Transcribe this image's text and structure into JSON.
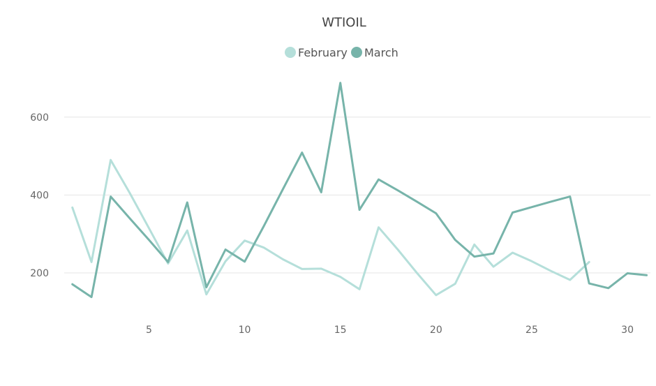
{
  "chart_data": {
    "type": "line",
    "title": "WTIOIL",
    "xlabel": "",
    "ylabel": "",
    "xlim": [
      0.5,
      31.2
    ],
    "ylim": [
      105,
      700
    ],
    "x_ticks": [
      5,
      10,
      15,
      20,
      25,
      30
    ],
    "y_ticks": [
      200,
      400,
      600
    ],
    "grid": true,
    "legend_position": "top-center",
    "series": [
      {
        "name": "February",
        "color": "#b5dfda",
        "x": [
          1,
          2,
          3,
          4,
          5,
          6,
          7,
          8,
          9,
          10,
          11,
          12,
          13,
          14,
          15,
          16,
          17,
          18,
          19,
          20,
          21,
          22,
          23,
          24,
          25,
          26,
          27,
          28
        ],
        "values": [
          368,
          228,
          490,
          405,
          315,
          224,
          309,
          145,
          230,
          283,
          265,
          235,
          210,
          211,
          190,
          158,
          317,
          260,
          200,
          143,
          172,
          273,
          216,
          252,
          230,
          205,
          182,
          228
        ]
      },
      {
        "name": "March",
        "color": "#77b4aa",
        "x": [
          1,
          2,
          3,
          4,
          5,
          6,
          7,
          8,
          9,
          10,
          11,
          12,
          13,
          14,
          15,
          16,
          17,
          18,
          19,
          20,
          21,
          22,
          23,
          24,
          25,
          26,
          27,
          28,
          29,
          30,
          31
        ],
        "values": [
          171,
          138,
          396,
          340,
          285,
          228,
          381,
          163,
          260,
          229,
          320,
          415,
          509,
          407,
          688,
          362,
          440,
          412,
          383,
          353,
          285,
          242,
          250,
          355,
          369,
          383,
          396,
          173,
          161,
          199,
          194
        ]
      }
    ]
  }
}
